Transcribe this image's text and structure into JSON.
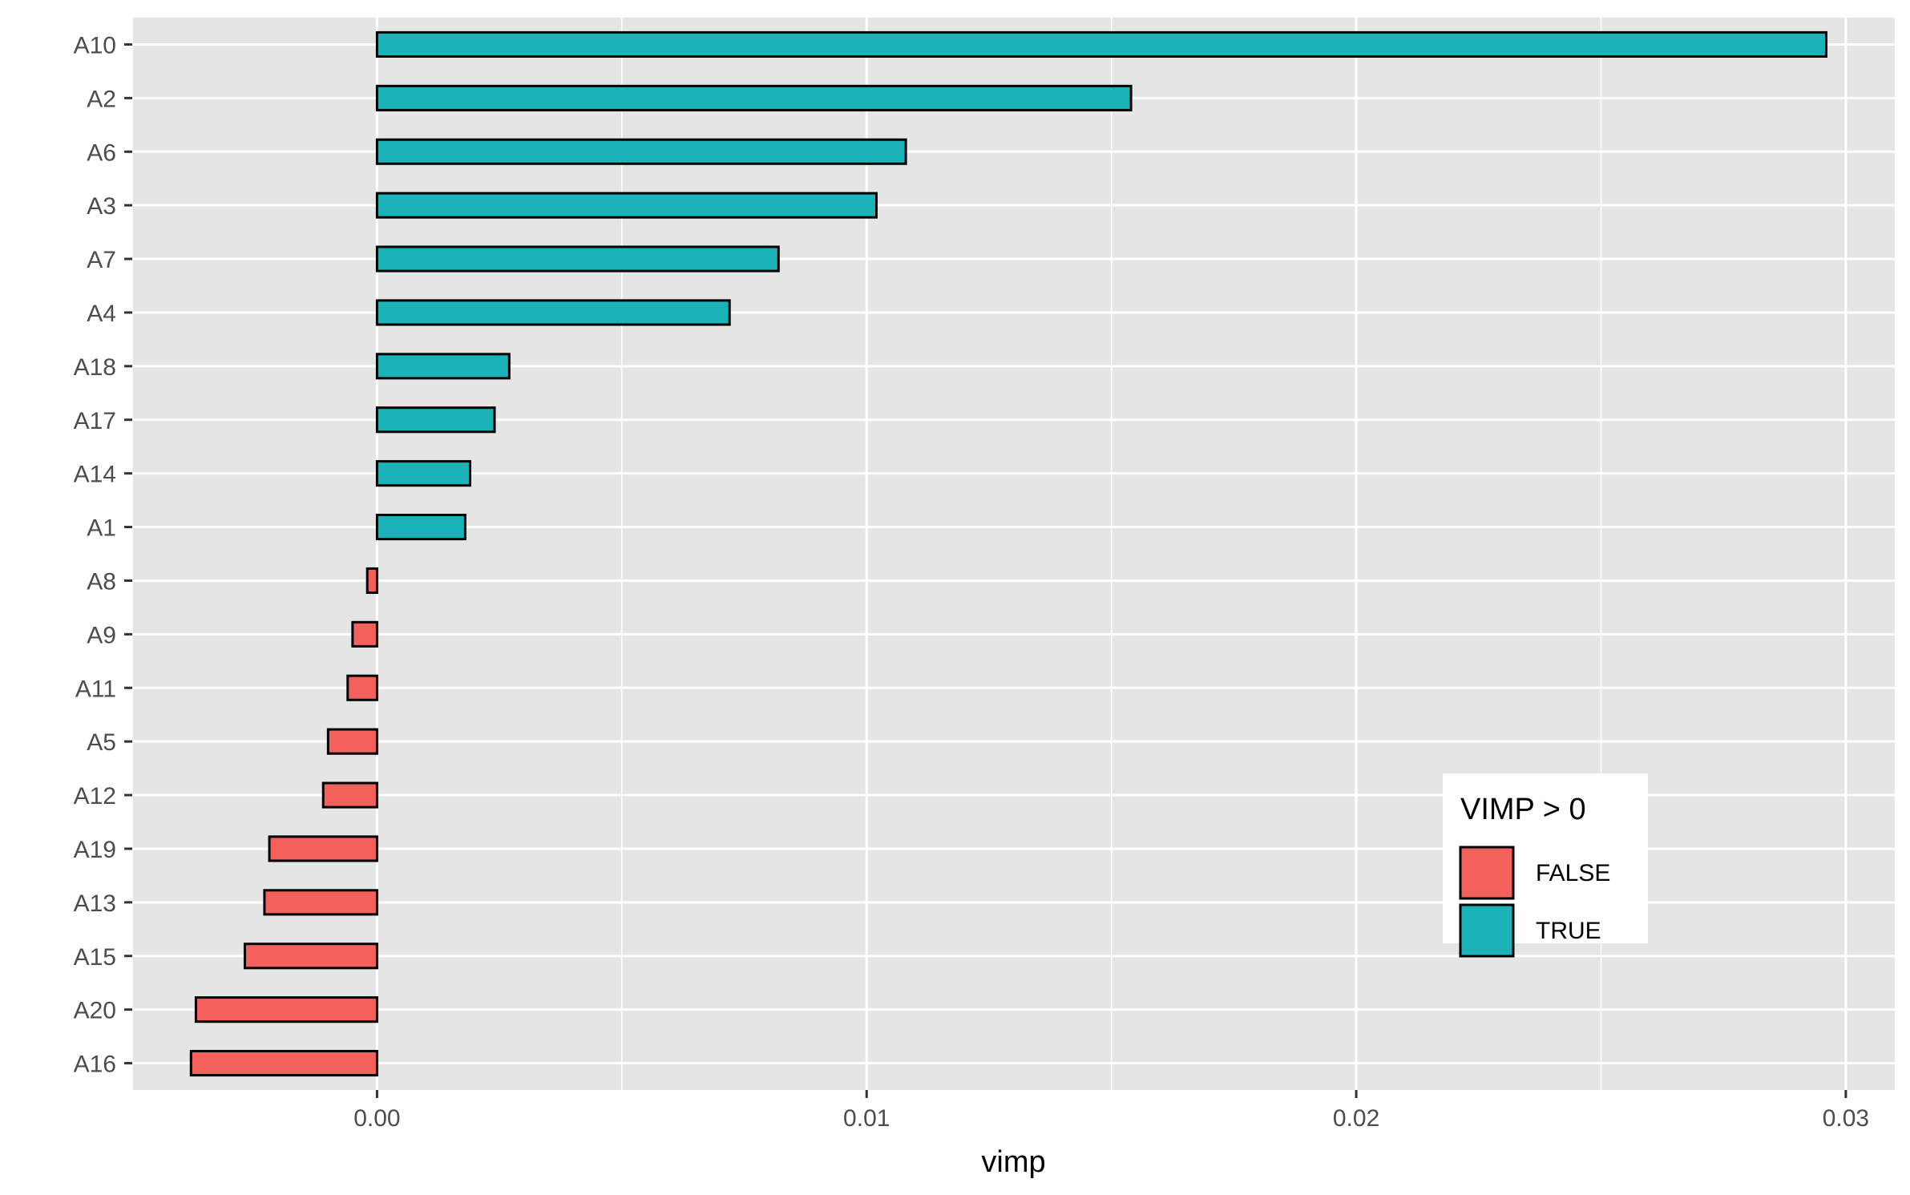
{
  "chart_data": {
    "type": "bar",
    "orientation": "horizontal",
    "categories": [
      "A10",
      "A2",
      "A6",
      "A3",
      "A7",
      "A4",
      "A18",
      "A17",
      "A14",
      "A1",
      "A8",
      "A9",
      "A11",
      "A5",
      "A12",
      "A19",
      "A13",
      "A15",
      "A20",
      "A16"
    ],
    "values": [
      0.0296,
      0.0154,
      0.0108,
      0.0102,
      0.0082,
      0.0072,
      0.0027,
      0.0024,
      0.0019,
      0.0018,
      -0.0002,
      -0.0005,
      -0.0006,
      -0.001,
      -0.0011,
      -0.0022,
      -0.0023,
      -0.0027,
      -0.0037,
      -0.0038
    ],
    "xlabel": "vimp",
    "ylabel": "",
    "xlim": [
      -0.005,
      0.031
    ],
    "xticks": [
      0.0,
      0.01,
      0.02,
      0.03
    ],
    "xtick_labels": [
      "0.00",
      "0.01",
      "0.02",
      "0.03"
    ],
    "grid": true,
    "legend": {
      "title": "VIMP > 0",
      "position": "bottom-right inside",
      "entries": [
        {
          "label": "FALSE",
          "color": "#F8766D"
        },
        {
          "label": "TRUE",
          "color": "#00BFC4"
        }
      ]
    },
    "colors": {
      "positive": "#1BB3B8",
      "negative": "#F4615C",
      "panel": "#E5E5E5",
      "grid": "#FFFFFF",
      "bar_outline": "#000000"
    }
  }
}
